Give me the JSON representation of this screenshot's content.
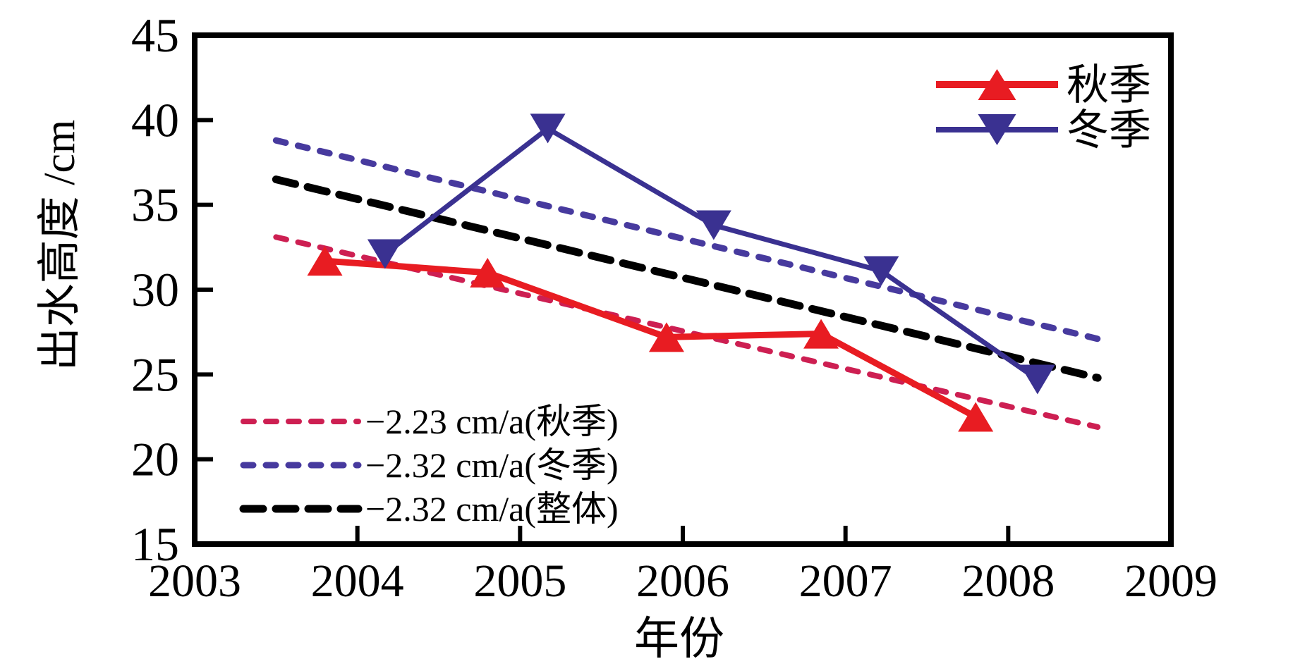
{
  "figure": {
    "background": "#ffffff",
    "axis_color": "#000000"
  },
  "chart_data": {
    "type": "line",
    "title": "",
    "xlabel": "年份",
    "ylabel": "出水高度 /cm",
    "xlim": [
      2003,
      2009
    ],
    "ylim": [
      15,
      45
    ],
    "x_ticks": [
      2003,
      2004,
      2005,
      2006,
      2007,
      2008,
      2009
    ],
    "y_ticks": [
      15,
      20,
      25,
      30,
      35,
      40,
      45
    ],
    "grid": false,
    "legend_position": "top-right-inside",
    "series": [
      {
        "id": "autumn",
        "name": "秋季",
        "color": "#e81c22",
        "line_width": 9,
        "marker": "triangle-up",
        "points": [
          [
            2003.8,
            31.7
          ],
          [
            2004.8,
            31.0
          ],
          [
            2005.9,
            27.2
          ],
          [
            2006.85,
            27.4
          ],
          [
            2007.8,
            22.5
          ]
        ]
      },
      {
        "id": "winter",
        "name": "冬季",
        "color": "#3a3191",
        "line_width": 7,
        "marker": "triangle-down",
        "points": [
          [
            2004.17,
            32.1
          ],
          [
            2005.17,
            39.5
          ],
          [
            2006.19,
            33.8
          ],
          [
            2007.22,
            31.1
          ],
          [
            2008.18,
            24.7
          ]
        ]
      }
    ],
    "trend_lines": [
      {
        "id": "autumn-trend",
        "label": "−2.23 cm/a(秋季)",
        "rate_cm_per_year": -2.23,
        "color": "#cd1f52",
        "width": 8,
        "dash": [
          15,
          17
        ],
        "start": [
          2003.5,
          33.1
        ],
        "end": [
          2008.55,
          21.9
        ]
      },
      {
        "id": "winter-trend",
        "label": "−2.32 cm/a(冬季)",
        "rate_cm_per_year": -2.32,
        "color": "#473a9e",
        "width": 9,
        "dash": [
          14,
          18
        ],
        "start": [
          2003.5,
          38.8
        ],
        "end": [
          2008.55,
          27.1
        ]
      },
      {
        "id": "overall-trend",
        "label": "−2.32 cm/a(整体)",
        "rate_cm_per_year": -2.32,
        "color": "#000000",
        "width": 11,
        "dash": [
          28,
          18
        ],
        "start": [
          2003.5,
          36.5
        ],
        "end": [
          2008.55,
          24.8
        ]
      }
    ]
  }
}
